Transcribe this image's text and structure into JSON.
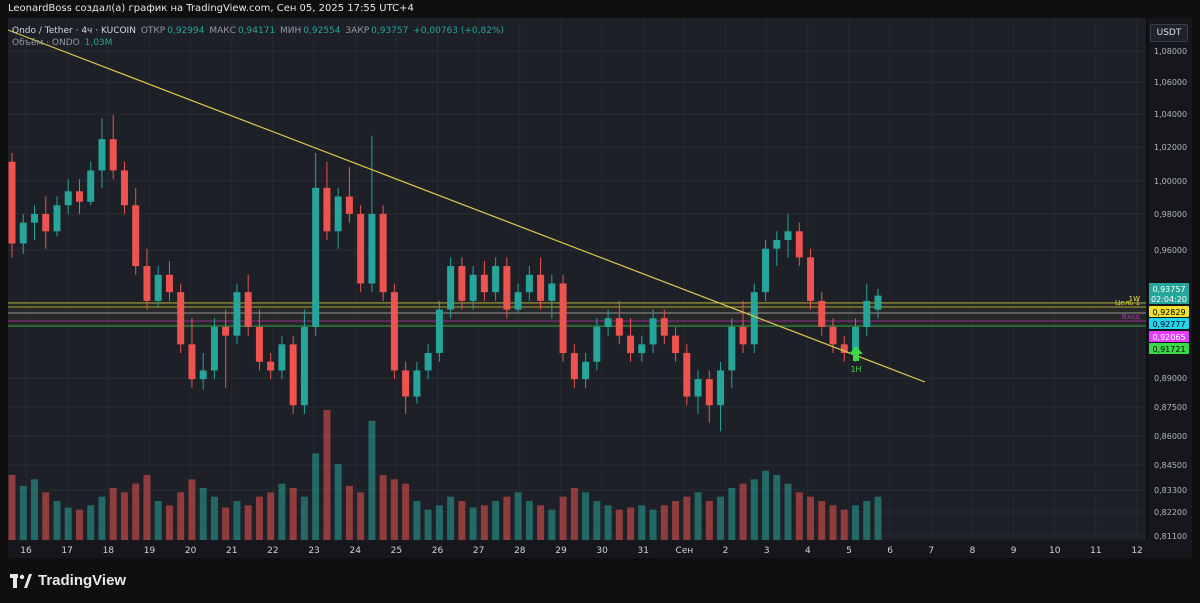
{
  "header": {
    "text": "LeonardBoss создал(а) график на TradingView.com, Сен 05, 2025 17:55 UTC+4"
  },
  "legend": {
    "symbol": "Ondo / Tether · 4ч · KUCOIN",
    "open_label": "ОТКР",
    "open": "0,92994",
    "high_label": "МАКС",
    "high": "0,94171",
    "low_label": "МИН",
    "low": "0,92554",
    "close_label": "ЗАКР",
    "close": "0,93757",
    "change": "+0,00763 (+0,82%)",
    "volume_label": "Объём · ONDO",
    "volume": "1,03M"
  },
  "currency": "USDT",
  "branding": {
    "logo_text": "TradingView"
  },
  "colors": {
    "up": "#26a69a",
    "down": "#ef5350",
    "trend": "#d4c34a",
    "level_1w": "#e8e23c",
    "level_target": "#f0e130",
    "level_mid": "#cfcfcf",
    "level_entry": "#d12bd1",
    "level_green": "#3bd94a"
  },
  "chart_data": {
    "type": "candlestick",
    "timeframe": "4h",
    "x_ticks": [
      "16",
      "17",
      "18",
      "19",
      "20",
      "21",
      "22",
      "23",
      "24",
      "25",
      "26",
      "27",
      "28",
      "29",
      "30",
      "31",
      "Сен",
      "2",
      "3",
      "4",
      "5",
      "6",
      "7",
      "8",
      "9",
      "10",
      "11",
      "12"
    ],
    "y_ticks": [
      "1,08000",
      "1,06000",
      "1,04000",
      "1,02000",
      "1,00000",
      "0,98000",
      "0,96000",
      "0,89000",
      "0,87500",
      "0,86000",
      "0,84500",
      "0,83300",
      "0,82200",
      "0,81100"
    ],
    "candles": [
      {
        "o": 1.015,
        "h": 1.02,
        "l": 0.96,
        "c": 0.968
      },
      {
        "o": 0.968,
        "h": 0.985,
        "l": 0.962,
        "c": 0.98
      },
      {
        "o": 0.98,
        "h": 0.99,
        "l": 0.97,
        "c": 0.985
      },
      {
        "o": 0.985,
        "h": 0.995,
        "l": 0.965,
        "c": 0.975
      },
      {
        "o": 0.975,
        "h": 0.995,
        "l": 0.972,
        "c": 0.99
      },
      {
        "o": 0.99,
        "h": 1.005,
        "l": 0.985,
        "c": 0.998
      },
      {
        "o": 0.998,
        "h": 1.005,
        "l": 0.985,
        "c": 0.992
      },
      {
        "o": 0.992,
        "h": 1.015,
        "l": 0.99,
        "c": 1.01
      },
      {
        "o": 1.01,
        "h": 1.04,
        "l": 1.0,
        "c": 1.028
      },
      {
        "o": 1.028,
        "h": 1.042,
        "l": 1.005,
        "c": 1.01
      },
      {
        "o": 1.01,
        "h": 1.015,
        "l": 0.985,
        "c": 0.99
      },
      {
        "o": 0.99,
        "h": 1.0,
        "l": 0.95,
        "c": 0.955
      },
      {
        "o": 0.955,
        "h": 0.965,
        "l": 0.93,
        "c": 0.935
      },
      {
        "o": 0.935,
        "h": 0.955,
        "l": 0.932,
        "c": 0.95
      },
      {
        "o": 0.95,
        "h": 0.958,
        "l": 0.935,
        "c": 0.94
      },
      {
        "o": 0.94,
        "h": 0.945,
        "l": 0.905,
        "c": 0.91
      },
      {
        "o": 0.91,
        "h": 0.925,
        "l": 0.885,
        "c": 0.89
      },
      {
        "o": 0.89,
        "h": 0.905,
        "l": 0.884,
        "c": 0.895
      },
      {
        "o": 0.895,
        "h": 0.925,
        "l": 0.89,
        "c": 0.92
      },
      {
        "o": 0.92,
        "h": 0.93,
        "l": 0.885,
        "c": 0.915
      },
      {
        "o": 0.915,
        "h": 0.945,
        "l": 0.91,
        "c": 0.94
      },
      {
        "o": 0.94,
        "h": 0.95,
        "l": 0.915,
        "c": 0.92
      },
      {
        "o": 0.92,
        "h": 0.93,
        "l": 0.895,
        "c": 0.9
      },
      {
        "o": 0.9,
        "h": 0.905,
        "l": 0.89,
        "c": 0.895
      },
      {
        "o": 0.895,
        "h": 0.915,
        "l": 0.89,
        "c": 0.91
      },
      {
        "o": 0.91,
        "h": 0.915,
        "l": 0.87,
        "c": 0.875
      },
      {
        "o": 0.875,
        "h": 0.93,
        "l": 0.87,
        "c": 0.92
      },
      {
        "o": 0.92,
        "h": 1.02,
        "l": 0.915,
        "c": 1.0
      },
      {
        "o": 1.0,
        "h": 1.015,
        "l": 0.97,
        "c": 0.975
      },
      {
        "o": 0.975,
        "h": 1.0,
        "l": 0.965,
        "c": 0.995
      },
      {
        "o": 0.995,
        "h": 1.012,
        "l": 0.98,
        "c": 0.985
      },
      {
        "o": 0.985,
        "h": 0.99,
        "l": 0.94,
        "c": 0.945
      },
      {
        "o": 0.945,
        "h": 1.03,
        "l": 0.94,
        "c": 0.985
      },
      {
        "o": 0.985,
        "h": 0.99,
        "l": 0.935,
        "c": 0.94
      },
      {
        "o": 0.94,
        "h": 0.945,
        "l": 0.89,
        "c": 0.895
      },
      {
        "o": 0.895,
        "h": 0.9,
        "l": 0.87,
        "c": 0.88
      },
      {
        "o": 0.88,
        "h": 0.9,
        "l": 0.876,
        "c": 0.895
      },
      {
        "o": 0.895,
        "h": 0.91,
        "l": 0.89,
        "c": 0.905
      },
      {
        "o": 0.905,
        "h": 0.935,
        "l": 0.9,
        "c": 0.93
      },
      {
        "o": 0.93,
        "h": 0.96,
        "l": 0.925,
        "c": 0.955
      },
      {
        "o": 0.955,
        "h": 0.96,
        "l": 0.93,
        "c": 0.935
      },
      {
        "o": 0.935,
        "h": 0.955,
        "l": 0.93,
        "c": 0.95
      },
      {
        "o": 0.95,
        "h": 0.958,
        "l": 0.935,
        "c": 0.94
      },
      {
        "o": 0.94,
        "h": 0.96,
        "l": 0.935,
        "c": 0.955
      },
      {
        "o": 0.955,
        "h": 0.96,
        "l": 0.925,
        "c": 0.93
      },
      {
        "o": 0.93,
        "h": 0.945,
        "l": 0.928,
        "c": 0.94
      },
      {
        "o": 0.94,
        "h": 0.955,
        "l": 0.935,
        "c": 0.95
      },
      {
        "o": 0.95,
        "h": 0.96,
        "l": 0.93,
        "c": 0.935
      },
      {
        "o": 0.935,
        "h": 0.95,
        "l": 0.925,
        "c": 0.945
      },
      {
        "o": 0.945,
        "h": 0.95,
        "l": 0.9,
        "c": 0.905
      },
      {
        "o": 0.905,
        "h": 0.91,
        "l": 0.885,
        "c": 0.89
      },
      {
        "o": 0.89,
        "h": 0.905,
        "l": 0.885,
        "c": 0.9
      },
      {
        "o": 0.9,
        "h": 0.925,
        "l": 0.895,
        "c": 0.92
      },
      {
        "o": 0.92,
        "h": 0.93,
        "l": 0.915,
        "c": 0.925
      },
      {
        "o": 0.925,
        "h": 0.935,
        "l": 0.91,
        "c": 0.915
      },
      {
        "o": 0.915,
        "h": 0.925,
        "l": 0.9,
        "c": 0.905
      },
      {
        "o": 0.905,
        "h": 0.915,
        "l": 0.9,
        "c": 0.91
      },
      {
        "o": 0.91,
        "h": 0.93,
        "l": 0.905,
        "c": 0.925
      },
      {
        "o": 0.925,
        "h": 0.93,
        "l": 0.91,
        "c": 0.915
      },
      {
        "o": 0.915,
        "h": 0.92,
        "l": 0.9,
        "c": 0.905
      },
      {
        "o": 0.905,
        "h": 0.91,
        "l": 0.875,
        "c": 0.88
      },
      {
        "o": 0.88,
        "h": 0.895,
        "l": 0.87,
        "c": 0.89
      },
      {
        "o": 0.89,
        "h": 0.895,
        "l": 0.865,
        "c": 0.875
      },
      {
        "o": 0.875,
        "h": 0.9,
        "l": 0.86,
        "c": 0.895
      },
      {
        "o": 0.895,
        "h": 0.925,
        "l": 0.885,
        "c": 0.92
      },
      {
        "o": 0.92,
        "h": 0.935,
        "l": 0.905,
        "c": 0.91
      },
      {
        "o": 0.91,
        "h": 0.945,
        "l": 0.905,
        "c": 0.94
      },
      {
        "o": 0.94,
        "h": 0.97,
        "l": 0.935,
        "c": 0.965
      },
      {
        "o": 0.965,
        "h": 0.975,
        "l": 0.955,
        "c": 0.97
      },
      {
        "o": 0.97,
        "h": 0.985,
        "l": 0.96,
        "c": 0.975
      },
      {
        "o": 0.975,
        "h": 0.98,
        "l": 0.955,
        "c": 0.96
      },
      {
        "o": 0.96,
        "h": 0.965,
        "l": 0.93,
        "c": 0.935
      },
      {
        "o": 0.935,
        "h": 0.94,
        "l": 0.915,
        "c": 0.92
      },
      {
        "o": 0.92,
        "h": 0.925,
        "l": 0.905,
        "c": 0.91
      },
      {
        "o": 0.91,
        "h": 0.915,
        "l": 0.9,
        "c": 0.905
      },
      {
        "o": 0.905,
        "h": 0.925,
        "l": 0.9,
        "c": 0.92
      },
      {
        "o": 0.92,
        "h": 0.945,
        "l": 0.915,
        "c": 0.935
      },
      {
        "o": 0.93,
        "h": 0.942,
        "l": 0.925,
        "c": 0.938
      }
    ],
    "volume": [
      30,
      25,
      28,
      22,
      18,
      15,
      14,
      16,
      20,
      24,
      22,
      26,
      30,
      18,
      16,
      22,
      28,
      24,
      20,
      15,
      18,
      16,
      20,
      22,
      26,
      24,
      20,
      40,
      60,
      35,
      25,
      22,
      55,
      30,
      28,
      26,
      18,
      14,
      16,
      20,
      18,
      15,
      16,
      18,
      20,
      22,
      18,
      16,
      14,
      20,
      24,
      22,
      18,
      16,
      14,
      15,
      16,
      14,
      16,
      18,
      20,
      22,
      18,
      20,
      24,
      26,
      28,
      32,
      30,
      26,
      22,
      20,
      18,
      16,
      14,
      16,
      18,
      20
    ],
    "levels": [
      {
        "label": "1W",
        "price": 0.932,
        "color": "#e8e23c"
      },
      {
        "label": "Цель 1",
        "price": 0.92829,
        "color": "#f0e130"
      },
      {
        "label": "",
        "price": 0.92777,
        "color": "#cfcfcf"
      },
      {
        "label": "Вход",
        "price": 0.92065,
        "color": "#d12bd1"
      },
      {
        "label": "",
        "price": 0.91721,
        "color": "#3bd94a"
      }
    ],
    "price_labels": [
      {
        "text": "0,93757",
        "color": "#26a69a",
        "text_color": "#ffffff"
      },
      {
        "text": "02:04:20",
        "color": "#26a69a",
        "text_color": "#ffffff"
      },
      {
        "text": "0,92829",
        "color": "#f0e130",
        "text_color": "#000000"
      },
      {
        "text": "0,92777",
        "color": "#22d3ee",
        "text_color": "#000000"
      },
      {
        "text": "0,92065",
        "color": "#e040fb",
        "text_color": "#ffffff"
      },
      {
        "text": "0,91721",
        "color": "#3bd94a",
        "text_color": "#000000"
      }
    ],
    "annotations": [
      {
        "text": "1H",
        "type": "up-arrow"
      }
    ]
  }
}
